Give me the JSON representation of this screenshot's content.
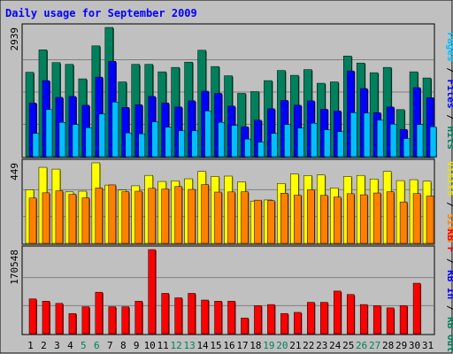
{
  "chart_data": {
    "type": "bar",
    "title": "Daily usage for September 2009",
    "categories": [
      "1",
      "2",
      "3",
      "4",
      "5",
      "6",
      "7",
      "8",
      "9",
      "10",
      "11",
      "12",
      "13",
      "14",
      "15",
      "16",
      "17",
      "18",
      "19",
      "20",
      "21",
      "22",
      "23",
      "24",
      "25",
      "26",
      "27",
      "28",
      "29",
      "30",
      "31"
    ],
    "weekend_days": [
      "5",
      "6",
      "12",
      "13",
      "19",
      "20",
      "26",
      "27"
    ],
    "panels": [
      {
        "max_label": "2939",
        "ymax": 2939,
        "legend": [
          {
            "text": "Pages",
            "color": "#00bfff"
          },
          {
            "text": " / ",
            "color": "#000000"
          },
          {
            "text": "Files",
            "color": "#0000ff"
          },
          {
            "text": " / ",
            "color": "#000000"
          },
          {
            "text": "Hits",
            "color": "#00805c"
          }
        ],
        "series": [
          {
            "name": "Hits",
            "color": "#00805c",
            "values": [
              1920,
              2430,
              2140,
              2100,
              1770,
              2520,
              2939,
              1700,
              2100,
              2100,
              1930,
              2030,
              2150,
              2420,
              2050,
              1840,
              1440,
              1480,
              1730,
              1960,
              1850,
              1980,
              1670,
              1700,
              2290,
              2130,
              1910,
              2030,
              1070,
              1930,
              1790
            ]
          },
          {
            "name": "Files",
            "color": "#0000ff",
            "values": [
              1220,
              1730,
              1350,
              1370,
              1170,
              1810,
              2170,
              1120,
              1180,
              1370,
              1220,
              1130,
              1270,
              1490,
              1440,
              1150,
              680,
              830,
              1090,
              1280,
              1170,
              1270,
              1080,
              1040,
              1950,
              1550,
              1000,
              1130,
              620,
              1570,
              1340
            ]
          },
          {
            "name": "Pages",
            "color": "#00bfff",
            "values": [
              530,
              1070,
              780,
              730,
              660,
              970,
              1240,
              540,
              520,
              790,
              670,
              590,
              590,
              1040,
              780,
              710,
              400,
              330,
              530,
              730,
              650,
              760,
              610,
              570,
              1000,
              990,
              830,
              740,
              410,
              730,
              680
            ]
          }
        ]
      },
      {
        "max_label": "449",
        "ymax": 449,
        "legend": [
          {
            "text": "Visits",
            "color": "#e6e600"
          },
          {
            "text": " / ",
            "color": "#000000"
          },
          {
            "text": "Sites",
            "color": "#ff8000"
          }
        ],
        "series": [
          {
            "name": "Visits",
            "color": "#ffff00",
            "values": [
              299,
              424,
              414,
              287,
              291,
              449,
              325,
              297,
              321,
              379,
              345,
              349,
              360,
              401,
              373,
              375,
              343,
              236,
              242,
              334,
              387,
              378,
              381,
              309,
              373,
              379,
              359,
              401,
              350,
              355,
              347
            ]
          },
          {
            "name": "Sites",
            "color": "#ff8000",
            "values": [
              253,
              282,
              293,
              274,
              254,
              309,
              326,
              288,
              291,
              307,
              303,
              317,
              301,
              328,
              286,
              287,
              288,
              241,
              238,
              280,
              269,
              299,
              268,
              258,
              277,
              271,
              281,
              288,
              231,
              278,
              264
            ]
          }
        ]
      },
      {
        "max_label": "170548",
        "ymax": 170548,
        "legend": [
          {
            "text": "KB F",
            "color": "#ff0000"
          },
          {
            "text": " / ",
            "color": "#000000"
          },
          {
            "text": "KB In",
            "color": "#0000ff"
          },
          {
            "text": " / ",
            "color": "#000000"
          },
          {
            "text": "KB Out",
            "color": "#00805c"
          }
        ],
        "series": [
          {
            "name": "KB F",
            "color": "#ff0000",
            "values": [
              70500,
              65900,
              61400,
              40900,
              54600,
              84100,
              54600,
              54600,
              65900,
              170548,
              81800,
              72700,
              81800,
              68200,
              65900,
              65900,
              31800,
              56800,
              59100,
              40900,
              43200,
              63600,
              63600,
              86400,
              79500,
              59100,
              56800,
              52300,
              56800,
              102300,
              0
            ]
          }
        ]
      }
    ]
  }
}
